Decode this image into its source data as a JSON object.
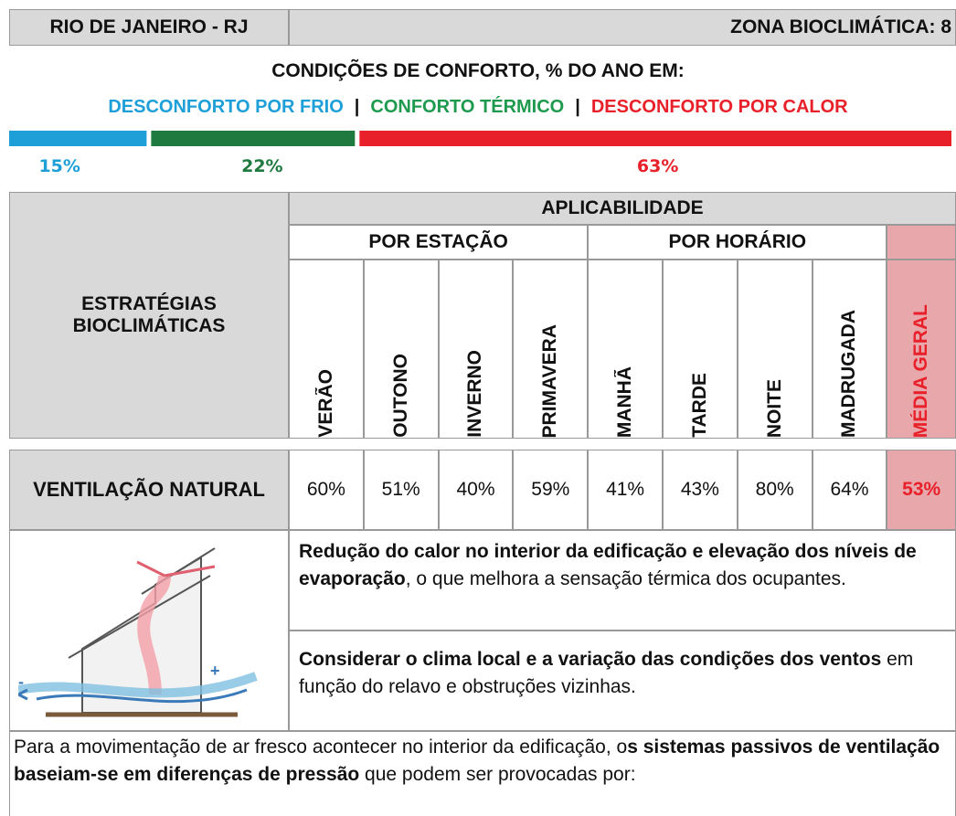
{
  "header": {
    "city": "RIO DE JANEIRO - RJ",
    "zone": "ZONA BIOCLIMÁTICA: 8"
  },
  "comfort": {
    "title": "CONDIÇÕES DE CONFORTO, % DO ANO EM:",
    "legend": [
      {
        "text": "DESCONFORTO POR FRIO",
        "color": "#1e9fd8"
      },
      {
        "text": "|",
        "color": "#111111"
      },
      {
        "text": "CONFORTO TÉRMICO",
        "color": "#1e9a4e"
      },
      {
        "text": "|",
        "color": "#111111"
      },
      {
        "text": "DESCONFORTO POR CALOR",
        "color": "#e8202a"
      }
    ],
    "segments": [
      {
        "value": 15,
        "value_label": "15%",
        "color": "#1e9fd8"
      },
      {
        "value": 22,
        "value_label": "22%",
        "color": "#1e7a3e"
      },
      {
        "value": 63,
        "value_label": "63%",
        "color": "#e8202a"
      }
    ]
  },
  "table": {
    "strategies_header": [
      "ESTRATÉGIAS",
      "BIOCLIMÁTICAS"
    ],
    "applicability": "APLICABILIDADE",
    "groups": [
      "POR ESTAÇÃO",
      "POR HORÁRIO"
    ],
    "columns": [
      "VERÃO",
      "OUTONO",
      "INVERNO",
      "PRIMAVERA",
      "MANHÃ",
      "TARDE",
      "NOITE",
      "MADRUGADA",
      "MÉDIA GERAL"
    ],
    "row": {
      "name": "VENTILAÇÃO NATURAL",
      "values": [
        "60%",
        "51%",
        "40%",
        "59%",
        "41%",
        "43%",
        "80%",
        "64%",
        "53%"
      ]
    },
    "descriptions": [
      [
        {
          "text": "Redução do calor no interior da edificação e elevação dos níveis de evaporação",
          "bold": true
        },
        {
          "text": ", o que melhora a sensação térmica dos ocupantes.",
          "bold": false
        }
      ],
      [
        {
          "text": "Considerar o clima local e a variação das condições dos ventos",
          "bold": true
        },
        {
          "text": " em função do relavo e obstruções vizinhas.",
          "bold": false
        }
      ]
    ],
    "note": [
      {
        "text": "Para a movimentação de ar fresco acontecer no interior da edificação, o",
        "bold": false
      },
      {
        "text": "s sistemas passivos de ventilação baseiam-se em diferenças de pressão",
        "bold": true
      },
      {
        "text": " que podem ser provocadas por:",
        "bold": false
      }
    ]
  }
}
